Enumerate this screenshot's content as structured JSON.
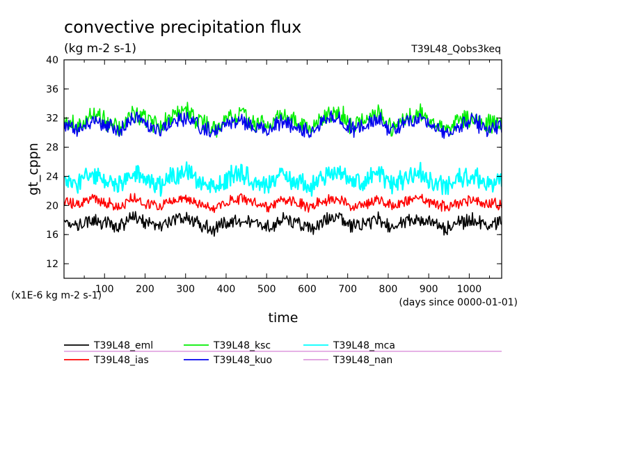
{
  "chart_data": {
    "type": "line",
    "title": "convective precipitation flux",
    "units": "(kg m-2 s-1)",
    "experiment": "T39L48_Qobs3keq",
    "xlabel": "time",
    "x_units": "(days since 0000-01-01)",
    "ylabel": "gt_cppn",
    "y_units": "(x1E-6 kg m-2 s-1)",
    "xlim": [
      0,
      1080
    ],
    "ylim": [
      10,
      40
    ],
    "x_ticks": [
      100,
      200,
      300,
      400,
      500,
      600,
      700,
      800,
      900,
      1000
    ],
    "y_ticks": [
      12,
      16,
      20,
      24,
      28,
      32,
      36,
      40
    ],
    "grid": false,
    "legend_position": "bottom",
    "series": [
      {
        "name": "T39L48_eml",
        "color": "#000000",
        "mean": 17.6,
        "amplitude": 1.1,
        "samples": [
          17.8,
          17.2,
          18.1,
          17.5,
          16.9,
          18.3,
          17.6,
          17.0,
          17.9,
          18.4,
          17.3,
          16.8,
          17.7,
          18.2,
          17.4,
          17.1,
          18.0,
          17.6,
          16.7,
          17.9,
          18.5,
          17.2,
          17.5,
          18.1,
          17.0,
          17.8,
          18.3,
          17.4,
          16.9,
          17.7,
          18.0,
          17.3,
          17.6
        ]
      },
      {
        "name": "T39L48_ias",
        "color": "#ff0000",
        "mean": 20.3,
        "amplitude": 0.9,
        "samples": [
          20.6,
          20.1,
          20.9,
          20.4,
          19.8,
          21.0,
          20.3,
          19.9,
          20.7,
          21.2,
          20.2,
          19.7,
          20.5,
          21.0,
          20.1,
          19.9,
          20.8,
          20.4,
          19.6,
          20.7,
          21.1,
          20.0,
          20.3,
          20.9,
          19.9,
          20.6,
          21.0,
          20.2,
          19.8,
          20.5,
          20.8,
          20.1,
          20.3
        ]
      },
      {
        "name": "T39L48_ksc",
        "color": "#00ee00",
        "mean": 31.6,
        "amplitude": 1.5,
        "samples": [
          31.8,
          31.0,
          32.4,
          31.5,
          30.6,
          32.7,
          31.7,
          30.8,
          32.2,
          32.9,
          31.3,
          30.5,
          31.9,
          32.6,
          31.2,
          30.9,
          32.3,
          31.6,
          30.4,
          32.1,
          33.0,
          31.1,
          31.5,
          32.4,
          30.8,
          31.9,
          32.7,
          31.3,
          30.6,
          31.8,
          32.2,
          31.1,
          31.6
        ]
      },
      {
        "name": "T39L48_kuo",
        "color": "#0000ee",
        "mean": 31.0,
        "amplitude": 1.3,
        "samples": [
          31.1,
          30.5,
          31.7,
          30.9,
          30.1,
          32.0,
          31.0,
          30.3,
          31.5,
          32.2,
          30.7,
          30.0,
          31.2,
          31.9,
          30.6,
          30.3,
          31.6,
          31.0,
          29.9,
          31.4,
          32.3,
          30.5,
          30.9,
          31.7,
          30.2,
          31.2,
          32.0,
          30.7,
          30.1,
          31.1,
          31.5,
          30.5,
          30.9
        ]
      },
      {
        "name": "T39L48_mca",
        "color": "#00ffff",
        "mean": 23.5,
        "amplitude": 1.6,
        "samples": [
          23.6,
          22.9,
          24.3,
          23.4,
          22.6,
          24.6,
          23.5,
          22.7,
          24.1,
          24.8,
          23.2,
          22.4,
          23.8,
          24.5,
          23.1,
          22.8,
          24.2,
          23.5,
          22.3,
          24.0,
          24.9,
          23.0,
          23.4,
          24.3,
          22.7,
          23.8,
          24.6,
          23.2,
          22.5,
          23.7,
          24.1,
          23.0,
          23.5
        ]
      },
      {
        "name": "T39L48_nan",
        "color": "#dd99dd",
        "values": []
      }
    ]
  }
}
